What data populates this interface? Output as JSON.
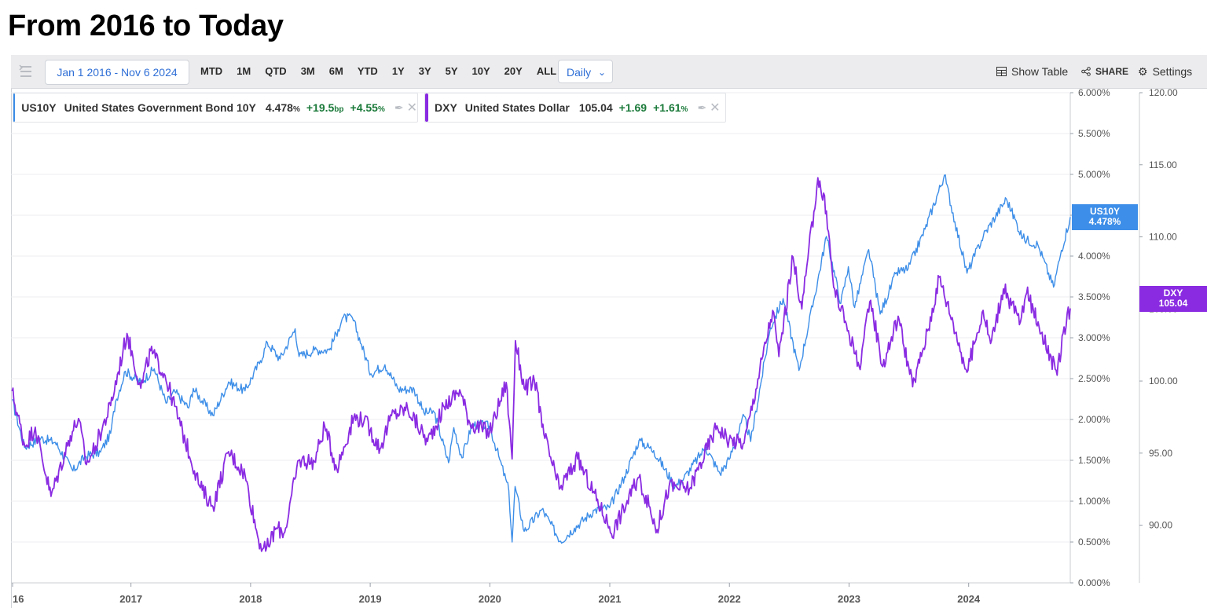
{
  "page": {
    "title": "From 2016 to Today"
  },
  "toolbar": {
    "date_range": "Jan 1 2016 - Nov 6 2024",
    "ranges": [
      "MTD",
      "1M",
      "QTD",
      "3M",
      "6M",
      "YTD",
      "1Y",
      "3Y",
      "5Y",
      "10Y",
      "20Y",
      "ALL"
    ],
    "interval": "Daily",
    "show_table": "Show Table",
    "share": "SHARE",
    "settings": "Settings"
  },
  "legend": [
    {
      "symbol": "US10Y",
      "name": "United States Government Bond 10Y",
      "value": "4.478",
      "value_unit": "%",
      "change": "+19.5",
      "change_unit": "bp",
      "pct": "+4.55",
      "pct_unit": "%",
      "color": "#3d8ee8"
    },
    {
      "symbol": "DXY",
      "name": "United States Dollar",
      "value": "105.04",
      "change": "+1.69",
      "pct": "+1.61",
      "pct_unit": "%",
      "color": "#8a2be2"
    }
  ],
  "badges": {
    "us10y": {
      "label": "US10Y",
      "value": "4.478%",
      "color": "#3d8ee8"
    },
    "dxy": {
      "label": "DXY",
      "value": "105.04",
      "color": "#8a2be2"
    }
  },
  "chart_data": {
    "type": "line",
    "x_range": [
      "2016-01-01",
      "2024-11-06"
    ],
    "x_ticks": [
      "16",
      "2017",
      "2018",
      "2019",
      "2020",
      "2021",
      "2022",
      "2023",
      "2024"
    ],
    "y_left": {
      "label": "",
      "ticks": [
        "0.000%",
        "0.500%",
        "1.000%",
        "1.500%",
        "2.000%",
        "2.500%",
        "3.000%",
        "3.500%",
        "4.000%",
        "4.500%",
        "5.000%",
        "5.500%",
        "6.000%"
      ],
      "range": [
        0,
        6
      ]
    },
    "y_right": {
      "label": "",
      "ticks": [
        "90.00",
        "95.00",
        "100.00",
        "105.00",
        "110.00",
        "115.00",
        "120.00"
      ],
      "range": [
        86,
        120
      ]
    },
    "grid": true,
    "series": [
      {
        "name": "US10Y",
        "axis": "left",
        "color": "#3d8ee8",
        "points": [
          [
            "2016-01-04",
            2.24
          ],
          [
            "2016-02-11",
            1.66
          ],
          [
            "2016-04-01",
            1.77
          ],
          [
            "2016-05-15",
            1.72
          ],
          [
            "2016-07-08",
            1.37
          ],
          [
            "2016-08-15",
            1.55
          ],
          [
            "2016-09-30",
            1.6
          ],
          [
            "2016-10-31",
            1.83
          ],
          [
            "2016-11-15",
            2.22
          ],
          [
            "2016-12-15",
            2.59
          ],
          [
            "2017-01-31",
            2.45
          ],
          [
            "2017-03-13",
            2.62
          ],
          [
            "2017-04-18",
            2.2
          ],
          [
            "2017-05-15",
            2.34
          ],
          [
            "2017-06-26",
            2.14
          ],
          [
            "2017-07-10",
            2.38
          ],
          [
            "2017-09-08",
            2.05
          ],
          [
            "2017-10-26",
            2.46
          ],
          [
            "2017-12-15",
            2.35
          ],
          [
            "2018-01-31",
            2.72
          ],
          [
            "2018-02-21",
            2.94
          ],
          [
            "2018-04-01",
            2.74
          ],
          [
            "2018-05-17",
            3.11
          ],
          [
            "2018-05-29",
            2.77
          ],
          [
            "2018-07-15",
            2.85
          ],
          [
            "2018-08-29",
            2.85
          ],
          [
            "2018-09-25",
            3.1
          ],
          [
            "2018-10-08",
            3.24
          ],
          [
            "2018-11-08",
            3.24
          ],
          [
            "2018-12-05",
            2.92
          ],
          [
            "2019-01-03",
            2.56
          ],
          [
            "2019-02-15",
            2.67
          ],
          [
            "2019-03-28",
            2.37
          ],
          [
            "2019-05-15",
            2.37
          ],
          [
            "2019-06-14",
            2.08
          ],
          [
            "2019-07-15",
            2.09
          ],
          [
            "2019-08-28",
            1.47
          ],
          [
            "2019-09-13",
            1.9
          ],
          [
            "2019-10-08",
            1.53
          ],
          [
            "2019-11-08",
            1.94
          ],
          [
            "2019-12-31",
            1.92
          ],
          [
            "2020-01-31",
            1.51
          ],
          [
            "2020-02-28",
            1.13
          ],
          [
            "2020-03-09",
            0.5
          ],
          [
            "2020-03-18",
            1.18
          ],
          [
            "2020-04-15",
            0.63
          ],
          [
            "2020-06-08",
            0.9
          ],
          [
            "2020-08-04",
            0.51
          ],
          [
            "2020-09-15",
            0.67
          ],
          [
            "2020-11-15",
            0.89
          ],
          [
            "2020-12-31",
            0.92
          ],
          [
            "2021-02-15",
            1.3
          ],
          [
            "2021-03-31",
            1.74
          ],
          [
            "2021-05-15",
            1.62
          ],
          [
            "2021-07-19",
            1.18
          ],
          [
            "2021-08-15",
            1.28
          ],
          [
            "2021-10-20",
            1.66
          ],
          [
            "2021-12-03",
            1.34
          ],
          [
            "2021-12-31",
            1.51
          ],
          [
            "2022-02-15",
            2.04
          ],
          [
            "2022-03-07",
            1.73
          ],
          [
            "2022-05-06",
            3.12
          ],
          [
            "2022-06-14",
            3.48
          ],
          [
            "2022-08-01",
            2.6
          ],
          [
            "2022-09-15",
            3.45
          ],
          [
            "2022-10-24",
            4.24
          ],
          [
            "2022-12-07",
            3.42
          ],
          [
            "2022-12-30",
            3.87
          ],
          [
            "2023-01-18",
            3.37
          ],
          [
            "2023-03-02",
            4.08
          ],
          [
            "2023-04-06",
            3.29
          ],
          [
            "2023-05-26",
            3.8
          ],
          [
            "2023-06-30",
            3.84
          ],
          [
            "2023-08-21",
            4.33
          ],
          [
            "2023-10-19",
            4.99
          ],
          [
            "2023-11-20",
            4.42
          ],
          [
            "2023-12-27",
            3.79
          ],
          [
            "2024-02-15",
            4.25
          ],
          [
            "2024-04-25",
            4.7
          ],
          [
            "2024-06-14",
            4.22
          ],
          [
            "2024-07-30",
            4.14
          ],
          [
            "2024-09-16",
            3.62
          ],
          [
            "2024-10-10",
            4.07
          ],
          [
            "2024-11-06",
            4.478
          ]
        ]
      },
      {
        "name": "DXY",
        "axis": "right",
        "color": "#8a2be2",
        "points": [
          [
            "2016-01-04",
            99.3
          ],
          [
            "2016-02-12",
            95.5
          ],
          [
            "2016-03-15",
            96.8
          ],
          [
            "2016-05-02",
            92.0
          ],
          [
            "2016-06-30",
            96.2
          ],
          [
            "2016-07-25",
            97.4
          ],
          [
            "2016-08-18",
            94.2
          ],
          [
            "2016-09-15",
            95.5
          ],
          [
            "2016-10-31",
            98.3
          ],
          [
            "2016-12-20",
            103.3
          ],
          [
            "2017-01-31",
            99.5
          ],
          [
            "2017-03-02",
            102.1
          ],
          [
            "2017-04-15",
            100.4
          ],
          [
            "2017-06-01",
            96.9
          ],
          [
            "2017-08-01",
            92.6
          ],
          [
            "2017-09-08",
            91.3
          ],
          [
            "2017-10-26",
            95.1
          ],
          [
            "2017-12-15",
            93.5
          ],
          [
            "2018-01-25",
            89.0
          ],
          [
            "2018-02-16",
            88.2
          ],
          [
            "2018-03-20",
            89.8
          ],
          [
            "2018-04-15",
            89.5
          ],
          [
            "2018-05-28",
            94.5
          ],
          [
            "2018-07-15",
            94.4
          ],
          [
            "2018-08-15",
            96.9
          ],
          [
            "2018-09-21",
            93.9
          ],
          [
            "2018-11-12",
            97.5
          ],
          [
            "2018-12-14",
            97.3
          ],
          [
            "2019-01-31",
            95.3
          ],
          [
            "2019-03-07",
            97.6
          ],
          [
            "2019-04-25",
            98.1
          ],
          [
            "2019-06-25",
            95.8
          ],
          [
            "2019-08-15",
            98.2
          ],
          [
            "2019-10-01",
            99.4
          ],
          [
            "2019-11-01",
            97.1
          ],
          [
            "2019-12-31",
            96.4
          ],
          [
            "2020-02-20",
            99.9
          ],
          [
            "2020-03-09",
            94.6
          ],
          [
            "2020-03-19",
            102.8
          ],
          [
            "2020-04-15",
            99.5
          ],
          [
            "2020-05-22",
            99.9
          ],
          [
            "2020-06-08",
            96.8
          ],
          [
            "2020-07-31",
            92.5
          ],
          [
            "2020-09-25",
            94.6
          ],
          [
            "2020-12-31",
            89.9
          ],
          [
            "2021-01-06",
            89.4
          ],
          [
            "2021-03-31",
            93.3
          ],
          [
            "2021-05-25",
            89.7
          ],
          [
            "2021-07-01",
            92.7
          ],
          [
            "2021-09-01",
            92.5
          ],
          [
            "2021-11-24",
            96.9
          ],
          [
            "2021-12-31",
            95.9
          ],
          [
            "2022-02-15",
            95.7
          ],
          [
            "2022-05-13",
            104.9
          ],
          [
            "2022-06-01",
            101.7
          ],
          [
            "2022-07-14",
            108.6
          ],
          [
            "2022-08-10",
            105.0
          ],
          [
            "2022-09-28",
            114.1
          ],
          [
            "2022-10-24",
            111.8
          ],
          [
            "2022-11-15",
            106.5
          ],
          [
            "2022-12-30",
            103.5
          ],
          [
            "2023-02-01",
            101.0
          ],
          [
            "2023-03-08",
            105.6
          ],
          [
            "2023-04-14",
            101.0
          ],
          [
            "2023-05-31",
            104.5
          ],
          [
            "2023-07-14",
            99.6
          ],
          [
            "2023-08-31",
            103.6
          ],
          [
            "2023-10-03",
            107.2
          ],
          [
            "2023-11-15",
            104.0
          ],
          [
            "2023-12-27",
            100.6
          ],
          [
            "2024-02-14",
            104.9
          ],
          [
            "2024-03-08",
            102.6
          ],
          [
            "2024-04-16",
            106.4
          ],
          [
            "2024-06-07",
            104.1
          ],
          [
            "2024-06-26",
            106.1
          ],
          [
            "2024-07-31",
            104.1
          ],
          [
            "2024-09-27",
            100.4
          ],
          [
            "2024-10-15",
            103.3
          ],
          [
            "2024-11-06",
            105.04
          ]
        ]
      }
    ]
  }
}
